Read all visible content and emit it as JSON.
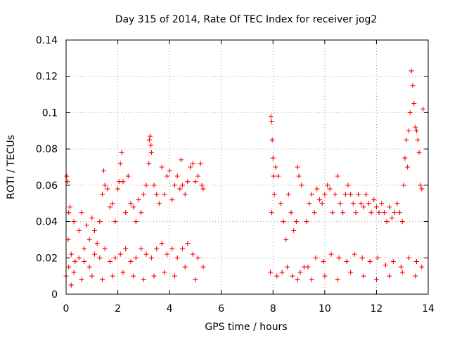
{
  "chart_data": {
    "type": "scatter",
    "title": "Day 315 of 2014, Rate Of TEC Index for receiver jog2",
    "xlabel": "GPS time / hours",
    "ylabel": "ROTI / TECUs",
    "xlim": [
      0,
      14
    ],
    "ylim": [
      0,
      0.14
    ],
    "x_ticks": [
      0,
      2,
      4,
      6,
      8,
      10,
      12,
      14
    ],
    "x_tick_labels": [
      "0",
      "2",
      "4",
      "6",
      "8",
      "10",
      "12",
      "14"
    ],
    "y_ticks": [
      0,
      0.02,
      0.04,
      0.06,
      0.08,
      0.1,
      0.12,
      0.14
    ],
    "y_tick_labels": [
      "0",
      "0.02",
      "0.04",
      "0.06",
      "0.08",
      "0.1",
      "0.12",
      "0.14"
    ],
    "grid": true,
    "marker": "+",
    "marker_color": "#ff0000",
    "series": [
      {
        "name": "ROTI",
        "x": [
          0.02,
          0.05,
          0.08,
          0.1,
          0.15,
          0.2,
          0.3,
          0.35,
          0.5,
          0.6,
          0.7,
          0.8,
          0.9,
          1.0,
          1.1,
          1.2,
          1.3,
          1.4,
          1.45,
          1.5,
          1.6,
          1.7,
          1.8,
          1.9,
          2.0,
          2.05,
          2.1,
          2.15,
          2.2,
          2.3,
          2.4,
          2.5,
          2.6,
          2.7,
          2.8,
          2.9,
          3.0,
          3.1,
          3.2,
          3.22,
          3.25,
          3.28,
          3.3,
          3.4,
          3.5,
          3.6,
          3.7,
          3.8,
          3.9,
          4.0,
          4.1,
          4.2,
          4.3,
          4.4,
          4.45,
          4.5,
          4.6,
          4.7,
          4.8,
          4.9,
          5.0,
          5.1,
          5.2,
          5.25,
          5.3,
          0.0,
          0.1,
          0.3,
          0.5,
          0.7,
          0.9,
          1.1,
          1.3,
          1.5,
          1.7,
          1.9,
          2.1,
          2.3,
          2.5,
          2.7,
          2.9,
          3.1,
          3.3,
          3.5,
          3.7,
          3.9,
          4.1,
          4.3,
          4.5,
          4.7,
          4.9,
          5.1,
          5.3,
          0.2,
          0.6,
          1.0,
          1.4,
          1.8,
          2.2,
          2.6,
          3.0,
          3.4,
          3.8,
          4.2,
          4.6,
          5.0,
          7.9,
          7.92,
          7.95,
          7.97,
          8.0,
          8.02,
          8.05,
          8.1,
          8.2,
          8.3,
          8.4,
          8.5,
          8.6,
          8.7,
          8.8,
          8.9,
          8.95,
          9.0,
          9.1,
          7.95,
          8.15,
          8.35,
          8.55,
          8.75,
          8.95,
          9.05,
          9.2,
          9.3,
          9.4,
          9.5,
          9.6,
          9.7,
          9.8,
          9.9,
          10.0,
          10.1,
          10.2,
          10.3,
          10.4,
          10.5,
          10.6,
          10.7,
          10.8,
          10.9,
          11.0,
          11.1,
          11.2,
          11.3,
          11.4,
          11.5,
          11.6,
          11.7,
          11.8,
          11.9,
          12.0,
          12.1,
          12.2,
          12.3,
          12.4,
          12.5,
          12.6,
          12.7,
          12.8,
          12.9,
          13.0,
          13.05,
          13.1,
          13.15,
          13.2,
          13.25,
          13.3,
          13.35,
          13.4,
          13.45,
          13.5,
          13.55,
          13.6,
          13.65,
          13.7,
          13.75,
          13.8,
          9.35,
          9.65,
          9.95,
          10.25,
          10.55,
          10.85,
          11.15,
          11.45,
          11.75,
          12.05,
          12.35,
          12.65,
          12.95,
          13.25,
          13.55,
          13.75,
          9.5,
          10.0,
          10.5,
          11.0,
          11.5,
          12.0,
          12.5,
          13.0,
          13.5
        ],
        "y": [
          0.065,
          0.062,
          0.03,
          0.045,
          0.048,
          0.022,
          0.04,
          0.018,
          0.035,
          0.045,
          0.025,
          0.038,
          0.03,
          0.042,
          0.035,
          0.028,
          0.04,
          0.055,
          0.068,
          0.06,
          0.058,
          0.048,
          0.05,
          0.04,
          0.058,
          0.062,
          0.072,
          0.078,
          0.062,
          0.045,
          0.065,
          0.05,
          0.048,
          0.04,
          0.052,
          0.045,
          0.055,
          0.06,
          0.072,
          0.085,
          0.087,
          0.082,
          0.078,
          0.06,
          0.055,
          0.05,
          0.07,
          0.055,
          0.065,
          0.068,
          0.052,
          0.06,
          0.065,
          0.058,
          0.074,
          0.06,
          0.055,
          0.062,
          0.07,
          0.072,
          0.062,
          0.065,
          0.072,
          0.06,
          0.058,
          0.01,
          0.015,
          0.012,
          0.02,
          0.018,
          0.015,
          0.022,
          0.02,
          0.025,
          0.018,
          0.02,
          0.022,
          0.025,
          0.018,
          0.02,
          0.025,
          0.022,
          0.02,
          0.025,
          0.028,
          0.022,
          0.025,
          0.02,
          0.025,
          0.028,
          0.022,
          0.02,
          0.015,
          0.005,
          0.008,
          0.01,
          0.008,
          0.01,
          0.012,
          0.01,
          0.008,
          0.01,
          0.012,
          0.01,
          0.015,
          0.008,
          0.012,
          0.098,
          0.095,
          0.085,
          0.075,
          0.065,
          0.055,
          0.07,
          0.065,
          0.05,
          0.04,
          0.03,
          0.055,
          0.045,
          0.035,
          0.04,
          0.07,
          0.065,
          0.06,
          0.045,
          0.01,
          0.012,
          0.015,
          0.01,
          0.008,
          0.012,
          0.015,
          0.04,
          0.05,
          0.055,
          0.045,
          0.058,
          0.052,
          0.05,
          0.055,
          0.06,
          0.058,
          0.045,
          0.055,
          0.065,
          0.05,
          0.045,
          0.055,
          0.06,
          0.055,
          0.05,
          0.045,
          0.055,
          0.05,
          0.048,
          0.055,
          0.05,
          0.045,
          0.052,
          0.048,
          0.045,
          0.05,
          0.045,
          0.04,
          0.048,
          0.042,
          0.045,
          0.05,
          0.045,
          0.04,
          0.06,
          0.075,
          0.085,
          0.07,
          0.09,
          0.1,
          0.123,
          0.115,
          0.105,
          0.092,
          0.09,
          0.085,
          0.078,
          0.06,
          0.058,
          0.102,
          0.015,
          0.02,
          0.018,
          0.022,
          0.02,
          0.018,
          0.022,
          0.02,
          0.018,
          0.02,
          0.016,
          0.018,
          0.015,
          0.02,
          0.018,
          0.015,
          0.008,
          0.01,
          0.008,
          0.012,
          0.01,
          0.008,
          0.01,
          0.012,
          0.01
        ]
      }
    ]
  }
}
